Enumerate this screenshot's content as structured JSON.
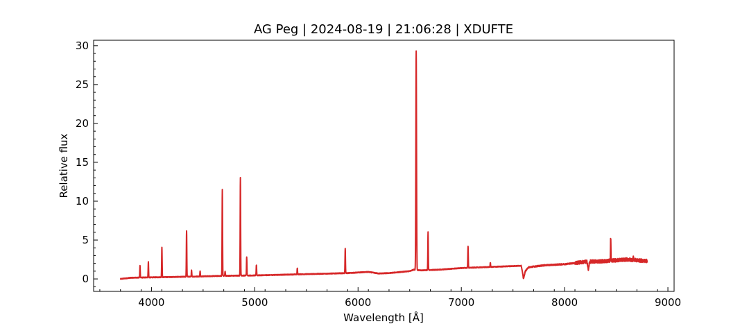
{
  "chart_data": {
    "type": "line",
    "title": "AG Peg | 2024-08-19 | 21:06:28 | XDUFTE",
    "xlabel": "Wavelength [Å]",
    "ylabel": "Relative flux",
    "xlim": [
      3440,
      9060
    ],
    "ylim": [
      -1.6,
      30.7
    ],
    "x_ticks": [
      4000,
      5000,
      6000,
      7000,
      8000,
      9000
    ],
    "y_ticks": [
      0,
      5,
      10,
      15,
      20,
      25,
      30
    ],
    "grid": false,
    "legend": "none",
    "series_color": "#d62728",
    "continuum": [
      [
        3700,
        0.0
      ],
      [
        3800,
        0.15
      ],
      [
        4000,
        0.2
      ],
      [
        4200,
        0.25
      ],
      [
        4400,
        0.3
      ],
      [
        4700,
        0.4
      ],
      [
        5000,
        0.45
      ],
      [
        5300,
        0.55
      ],
      [
        5600,
        0.65
      ],
      [
        5900,
        0.75
      ],
      [
        6100,
        0.9
      ],
      [
        6200,
        0.7
      ],
      [
        6300,
        0.75
      ],
      [
        6500,
        1.0
      ],
      [
        6540,
        1.2
      ],
      [
        6600,
        1.1
      ],
      [
        6800,
        1.2
      ],
      [
        6900,
        1.3
      ],
      [
        7000,
        1.4
      ],
      [
        7200,
        1.5
      ],
      [
        7400,
        1.6
      ],
      [
        7580,
        1.7
      ],
      [
        7600,
        0.3
      ],
      [
        7620,
        1.0
      ],
      [
        7650,
        1.5
      ],
      [
        7800,
        1.75
      ],
      [
        8000,
        1.9
      ],
      [
        8200,
        2.2
      ],
      [
        8400,
        2.3
      ],
      [
        8600,
        2.5
      ],
      [
        8800,
        2.3
      ]
    ],
    "emission_lines": [
      {
        "x": 3889,
        "peak": 1.7
      },
      {
        "x": 3970,
        "peak": 2.2
      },
      {
        "x": 4101,
        "peak": 4.1
      },
      {
        "x": 4340,
        "peak": 6.2
      },
      {
        "x": 4388,
        "peak": 1.1
      },
      {
        "x": 4471,
        "peak": 1.0
      },
      {
        "x": 4686,
        "peak": 11.5
      },
      {
        "x": 4713,
        "peak": 1.0
      },
      {
        "x": 4861,
        "peak": 13.0
      },
      {
        "x": 4922,
        "peak": 2.8
      },
      {
        "x": 5016,
        "peak": 1.8
      },
      {
        "x": 5412,
        "peak": 1.4
      },
      {
        "x": 5876,
        "peak": 3.9
      },
      {
        "x": 6563,
        "peak": 29.3
      },
      {
        "x": 6678,
        "peak": 6.0
      },
      {
        "x": 7065,
        "peak": 4.2
      },
      {
        "x": 7281,
        "peak": 2.1
      },
      {
        "x": 8446,
        "peak": 5.3
      },
      {
        "x": 8665,
        "peak": 2.9
      }
    ],
    "absorption_features": [
      {
        "x": 7605,
        "depth": 0.3
      },
      {
        "x": 8230,
        "depth": 1.0
      }
    ]
  }
}
